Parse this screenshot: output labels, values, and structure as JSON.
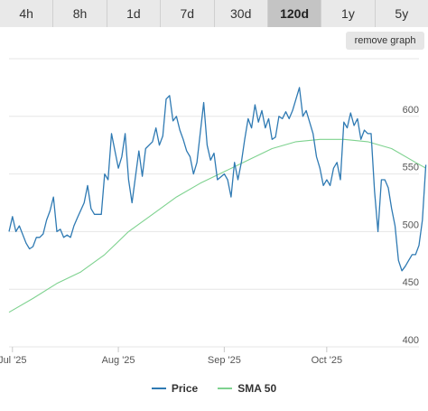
{
  "tabs": [
    {
      "label": "4h",
      "active": false
    },
    {
      "label": "8h",
      "active": false
    },
    {
      "label": "1d",
      "active": false
    },
    {
      "label": "7d",
      "active": false
    },
    {
      "label": "30d",
      "active": false
    },
    {
      "label": "120d",
      "active": true
    },
    {
      "label": "1y",
      "active": false
    },
    {
      "label": "5y",
      "active": false
    }
  ],
  "remove_graph_label": "remove graph",
  "colors": {
    "price": "#2f7ab3",
    "sma": "#7ed28f",
    "grid": "#e6e6e6",
    "axis_text": "#555555"
  },
  "chart_data": {
    "type": "line",
    "x_range": [
      "2025-06-30",
      "2025-10-28"
    ],
    "ylim": [
      400,
      650
    ],
    "y_ticks": [
      400,
      450,
      500,
      550,
      600
    ],
    "x_ticks": [
      {
        "date": "2025-07-01",
        "label": "Jul '25"
      },
      {
        "date": "2025-08-01",
        "label": "Aug '25"
      },
      {
        "date": "2025-09-01",
        "label": "Sep '25"
      },
      {
        "date": "2025-10-01",
        "label": "Oct '25"
      }
    ],
    "legend_position": "bottom-center",
    "grid": true,
    "series": [
      {
        "name": "Price",
        "points": [
          [
            "2025-06-30",
            500
          ],
          [
            "2025-07-01",
            513
          ],
          [
            "2025-07-02",
            500
          ],
          [
            "2025-07-03",
            505
          ],
          [
            "2025-07-05",
            490
          ],
          [
            "2025-07-06",
            485
          ],
          [
            "2025-07-07",
            487
          ],
          [
            "2025-07-08",
            495
          ],
          [
            "2025-07-09",
            495
          ],
          [
            "2025-07-10",
            498
          ],
          [
            "2025-07-11",
            510
          ],
          [
            "2025-07-12",
            518
          ],
          [
            "2025-07-13",
            530
          ],
          [
            "2025-07-14",
            500
          ],
          [
            "2025-07-15",
            502
          ],
          [
            "2025-07-16",
            495
          ],
          [
            "2025-07-17",
            497
          ],
          [
            "2025-07-18",
            495
          ],
          [
            "2025-07-19",
            505
          ],
          [
            "2025-07-20",
            512
          ],
          [
            "2025-07-22",
            525
          ],
          [
            "2025-07-23",
            540
          ],
          [
            "2025-07-24",
            520
          ],
          [
            "2025-07-25",
            515
          ],
          [
            "2025-07-27",
            515
          ],
          [
            "2025-07-28",
            550
          ],
          [
            "2025-07-29",
            545
          ],
          [
            "2025-07-30",
            585
          ],
          [
            "2025-07-31",
            570
          ],
          [
            "2025-08-01",
            555
          ],
          [
            "2025-08-02",
            565
          ],
          [
            "2025-08-03",
            585
          ],
          [
            "2025-08-04",
            545
          ],
          [
            "2025-08-05",
            525
          ],
          [
            "2025-08-07",
            570
          ],
          [
            "2025-08-08",
            548
          ],
          [
            "2025-08-09",
            572
          ],
          [
            "2025-08-11",
            578
          ],
          [
            "2025-08-12",
            590
          ],
          [
            "2025-08-13",
            575
          ],
          [
            "2025-08-14",
            583
          ],
          [
            "2025-08-15",
            615
          ],
          [
            "2025-08-16",
            618
          ],
          [
            "2025-08-17",
            596
          ],
          [
            "2025-08-18",
            600
          ],
          [
            "2025-08-19",
            588
          ],
          [
            "2025-08-20",
            580
          ],
          [
            "2025-08-21",
            570
          ],
          [
            "2025-08-22",
            565
          ],
          [
            "2025-08-23",
            550
          ],
          [
            "2025-08-24",
            560
          ],
          [
            "2025-08-26",
            612
          ],
          [
            "2025-08-27",
            575
          ],
          [
            "2025-08-28",
            562
          ],
          [
            "2025-08-29",
            568
          ],
          [
            "2025-08-30",
            545
          ],
          [
            "2025-09-01",
            550
          ],
          [
            "2025-09-02",
            545
          ],
          [
            "2025-09-03",
            530
          ],
          [
            "2025-09-04",
            560
          ],
          [
            "2025-09-05",
            545
          ],
          [
            "2025-09-06",
            560
          ],
          [
            "2025-09-07",
            580
          ],
          [
            "2025-09-08",
            598
          ],
          [
            "2025-09-09",
            590
          ],
          [
            "2025-09-10",
            610
          ],
          [
            "2025-09-11",
            595
          ],
          [
            "2025-09-12",
            605
          ],
          [
            "2025-09-13",
            590
          ],
          [
            "2025-09-14",
            598
          ],
          [
            "2025-09-15",
            580
          ],
          [
            "2025-09-16",
            582
          ],
          [
            "2025-09-17",
            600
          ],
          [
            "2025-09-18",
            598
          ],
          [
            "2025-09-19",
            604
          ],
          [
            "2025-09-20",
            598
          ],
          [
            "2025-09-21",
            605
          ],
          [
            "2025-09-22",
            615
          ],
          [
            "2025-09-23",
            625
          ],
          [
            "2025-09-24",
            600
          ],
          [
            "2025-09-25",
            605
          ],
          [
            "2025-09-26",
            595
          ],
          [
            "2025-09-27",
            585
          ],
          [
            "2025-09-28",
            565
          ],
          [
            "2025-09-29",
            555
          ],
          [
            "2025-09-30",
            540
          ],
          [
            "2025-10-01",
            545
          ],
          [
            "2025-10-02",
            540
          ],
          [
            "2025-10-03",
            555
          ],
          [
            "2025-10-04",
            560
          ],
          [
            "2025-10-05",
            545
          ],
          [
            "2025-10-06",
            595
          ],
          [
            "2025-10-07",
            590
          ],
          [
            "2025-10-08",
            603
          ],
          [
            "2025-10-09",
            592
          ],
          [
            "2025-10-10",
            598
          ],
          [
            "2025-10-11",
            580
          ],
          [
            "2025-10-12",
            588
          ],
          [
            "2025-10-13",
            585
          ],
          [
            "2025-10-14",
            585
          ],
          [
            "2025-10-15",
            535
          ],
          [
            "2025-10-16",
            500
          ],
          [
            "2025-10-17",
            545
          ],
          [
            "2025-10-18",
            545
          ],
          [
            "2025-10-19",
            538
          ],
          [
            "2025-10-20",
            520
          ],
          [
            "2025-10-21",
            505
          ],
          [
            "2025-10-22",
            475
          ],
          [
            "2025-10-23",
            466
          ],
          [
            "2025-10-24",
            470
          ],
          [
            "2025-10-25",
            475
          ],
          [
            "2025-10-26",
            480
          ],
          [
            "2025-10-27",
            480
          ],
          [
            "2025-10-28",
            488
          ],
          [
            "2025-10-29",
            510
          ],
          [
            "2025-10-30",
            558
          ]
        ]
      },
      {
        "name": "SMA 50",
        "points": [
          [
            "2025-06-30",
            430
          ],
          [
            "2025-07-07",
            442
          ],
          [
            "2025-07-14",
            455
          ],
          [
            "2025-07-21",
            465
          ],
          [
            "2025-07-28",
            480
          ],
          [
            "2025-08-04",
            500
          ],
          [
            "2025-08-11",
            515
          ],
          [
            "2025-08-18",
            530
          ],
          [
            "2025-08-25",
            542
          ],
          [
            "2025-09-01",
            552
          ],
          [
            "2025-09-08",
            562
          ],
          [
            "2025-09-15",
            572
          ],
          [
            "2025-09-22",
            578
          ],
          [
            "2025-09-29",
            580
          ],
          [
            "2025-10-06",
            580
          ],
          [
            "2025-10-13",
            578
          ],
          [
            "2025-10-20",
            572
          ],
          [
            "2025-10-27",
            560
          ],
          [
            "2025-10-30",
            555
          ]
        ]
      }
    ]
  }
}
